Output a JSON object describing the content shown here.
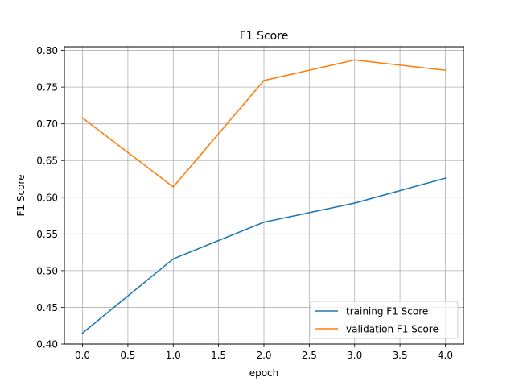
{
  "chart_data": {
    "type": "line",
    "title": "F1 Score",
    "xlabel": "epoch",
    "ylabel": "F1 Score",
    "x": [
      0,
      1,
      2,
      3,
      4
    ],
    "xlim": [
      -0.2,
      4.2
    ],
    "ylim": [
      0.4,
      0.805
    ],
    "xticks": [
      0.0,
      0.5,
      1.0,
      1.5,
      2.0,
      2.5,
      3.0,
      3.5,
      4.0
    ],
    "xtick_labels": [
      "0.0",
      "0.5",
      "1.0",
      "1.5",
      "2.0",
      "2.5",
      "3.0",
      "3.5",
      "4.0"
    ],
    "yticks": [
      0.4,
      0.45,
      0.5,
      0.55,
      0.6,
      0.65,
      0.7,
      0.75,
      0.8
    ],
    "ytick_labels": [
      "0.40",
      "0.45",
      "0.50",
      "0.55",
      "0.60",
      "0.65",
      "0.70",
      "0.75",
      "0.80"
    ],
    "grid": true,
    "legend_position": "lower-right",
    "series": [
      {
        "name": "training F1 Score",
        "color": "#1f77b4",
        "values": [
          0.415,
          0.516,
          0.566,
          0.592,
          0.626
        ]
      },
      {
        "name": "validation F1 Score",
        "color": "#ff7f0e",
        "values": [
          0.708,
          0.614,
          0.759,
          0.787,
          0.773
        ]
      }
    ]
  }
}
